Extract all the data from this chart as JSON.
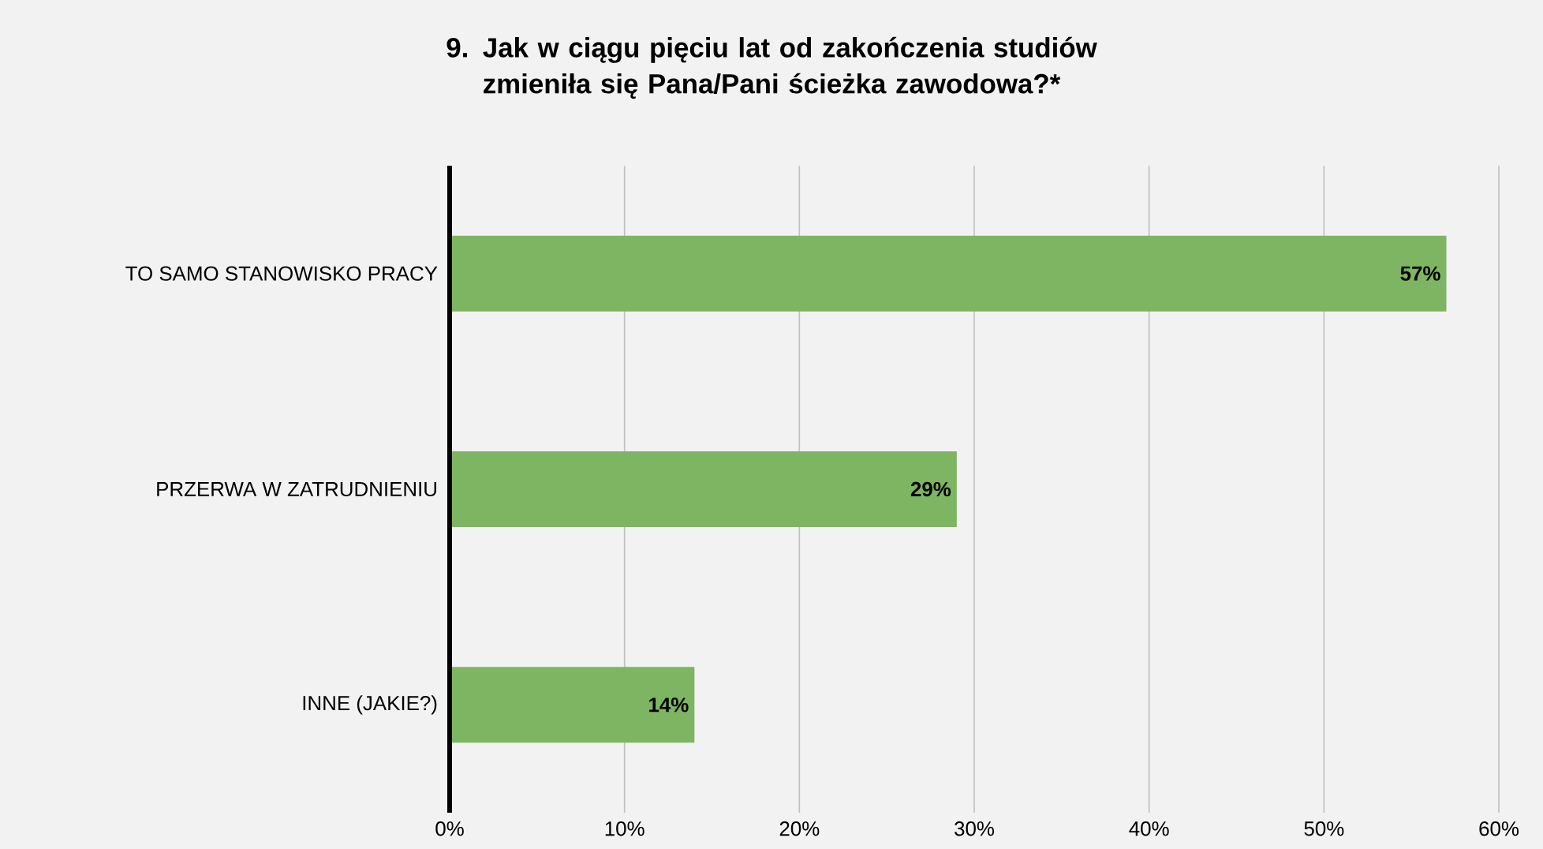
{
  "chart_data": {
    "type": "bar",
    "orientation": "horizontal",
    "title": "9. Jak w ciągu pięciu lat od zakończenia studiów zmieniła się Pana/Pani ścieżka zawodowa?*",
    "categories": [
      "TO SAMO STANOWISKO PRACY",
      "PRZERWA W ZATRUDNIENIU",
      "INNE (JAKIE?)"
    ],
    "values": [
      57,
      29,
      14
    ],
    "value_labels": [
      "57%",
      "29%",
      "14%"
    ],
    "color": "#7db562",
    "xlim": [
      0,
      60
    ],
    "xticks": [
      {
        "value": 0,
        "label": "0%"
      },
      {
        "value": 10,
        "label": "10%"
      },
      {
        "value": 20,
        "label": "20%"
      },
      {
        "value": 30,
        "label": "30%"
      },
      {
        "value": 40,
        "label": "40%"
      },
      {
        "value": 50,
        "label": "50%"
      },
      {
        "value": 60,
        "label": "60%"
      }
    ],
    "grid": "x"
  }
}
